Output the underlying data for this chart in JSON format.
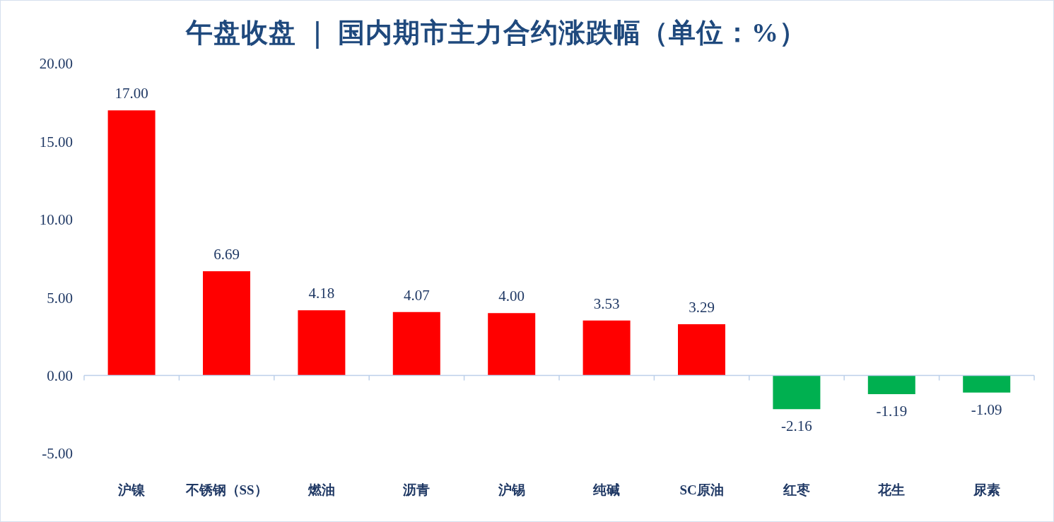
{
  "chart_data": {
    "type": "bar",
    "title": "午盘收盘 ｜ 国内期市主力合约涨跌幅（单位：%）",
    "categories": [
      "沪镍",
      "不锈钢（SS）",
      "燃油",
      "沥青",
      "沪锡",
      "纯碱",
      "SC原油",
      "红枣",
      "花生",
      "尿素"
    ],
    "values": [
      17,
      6.69,
      4.18,
      4.07,
      4,
      3.53,
      3.29,
      -2.16,
      -1.19,
      -1.09
    ],
    "colors": [
      "#ff0000",
      "#ff0000",
      "#ff0000",
      "#ff0000",
      "#ff0000",
      "#ff0000",
      "#ff0000",
      "#00b050",
      "#00b050",
      "#00b050"
    ],
    "value_labels": [
      "17.00",
      "6.69",
      "4.18",
      "4.07",
      "4.00",
      "3.53",
      "3.29",
      "-2.16",
      "-1.19",
      "-1.09"
    ],
    "ylim": [
      -5,
      20
    ],
    "yticks": [
      {
        "value": -5,
        "label": "-5.00"
      },
      {
        "value": 0,
        "label": "0.00"
      },
      {
        "value": 5,
        "label": "5.00"
      },
      {
        "value": 10,
        "label": "10.00"
      },
      {
        "value": 15,
        "label": "15.00"
      },
      {
        "value": 20,
        "label": "20.00"
      }
    ],
    "ref_lines": [
      {
        "axis": "y",
        "value": 0,
        "color": "#bcd0ea"
      }
    ]
  }
}
